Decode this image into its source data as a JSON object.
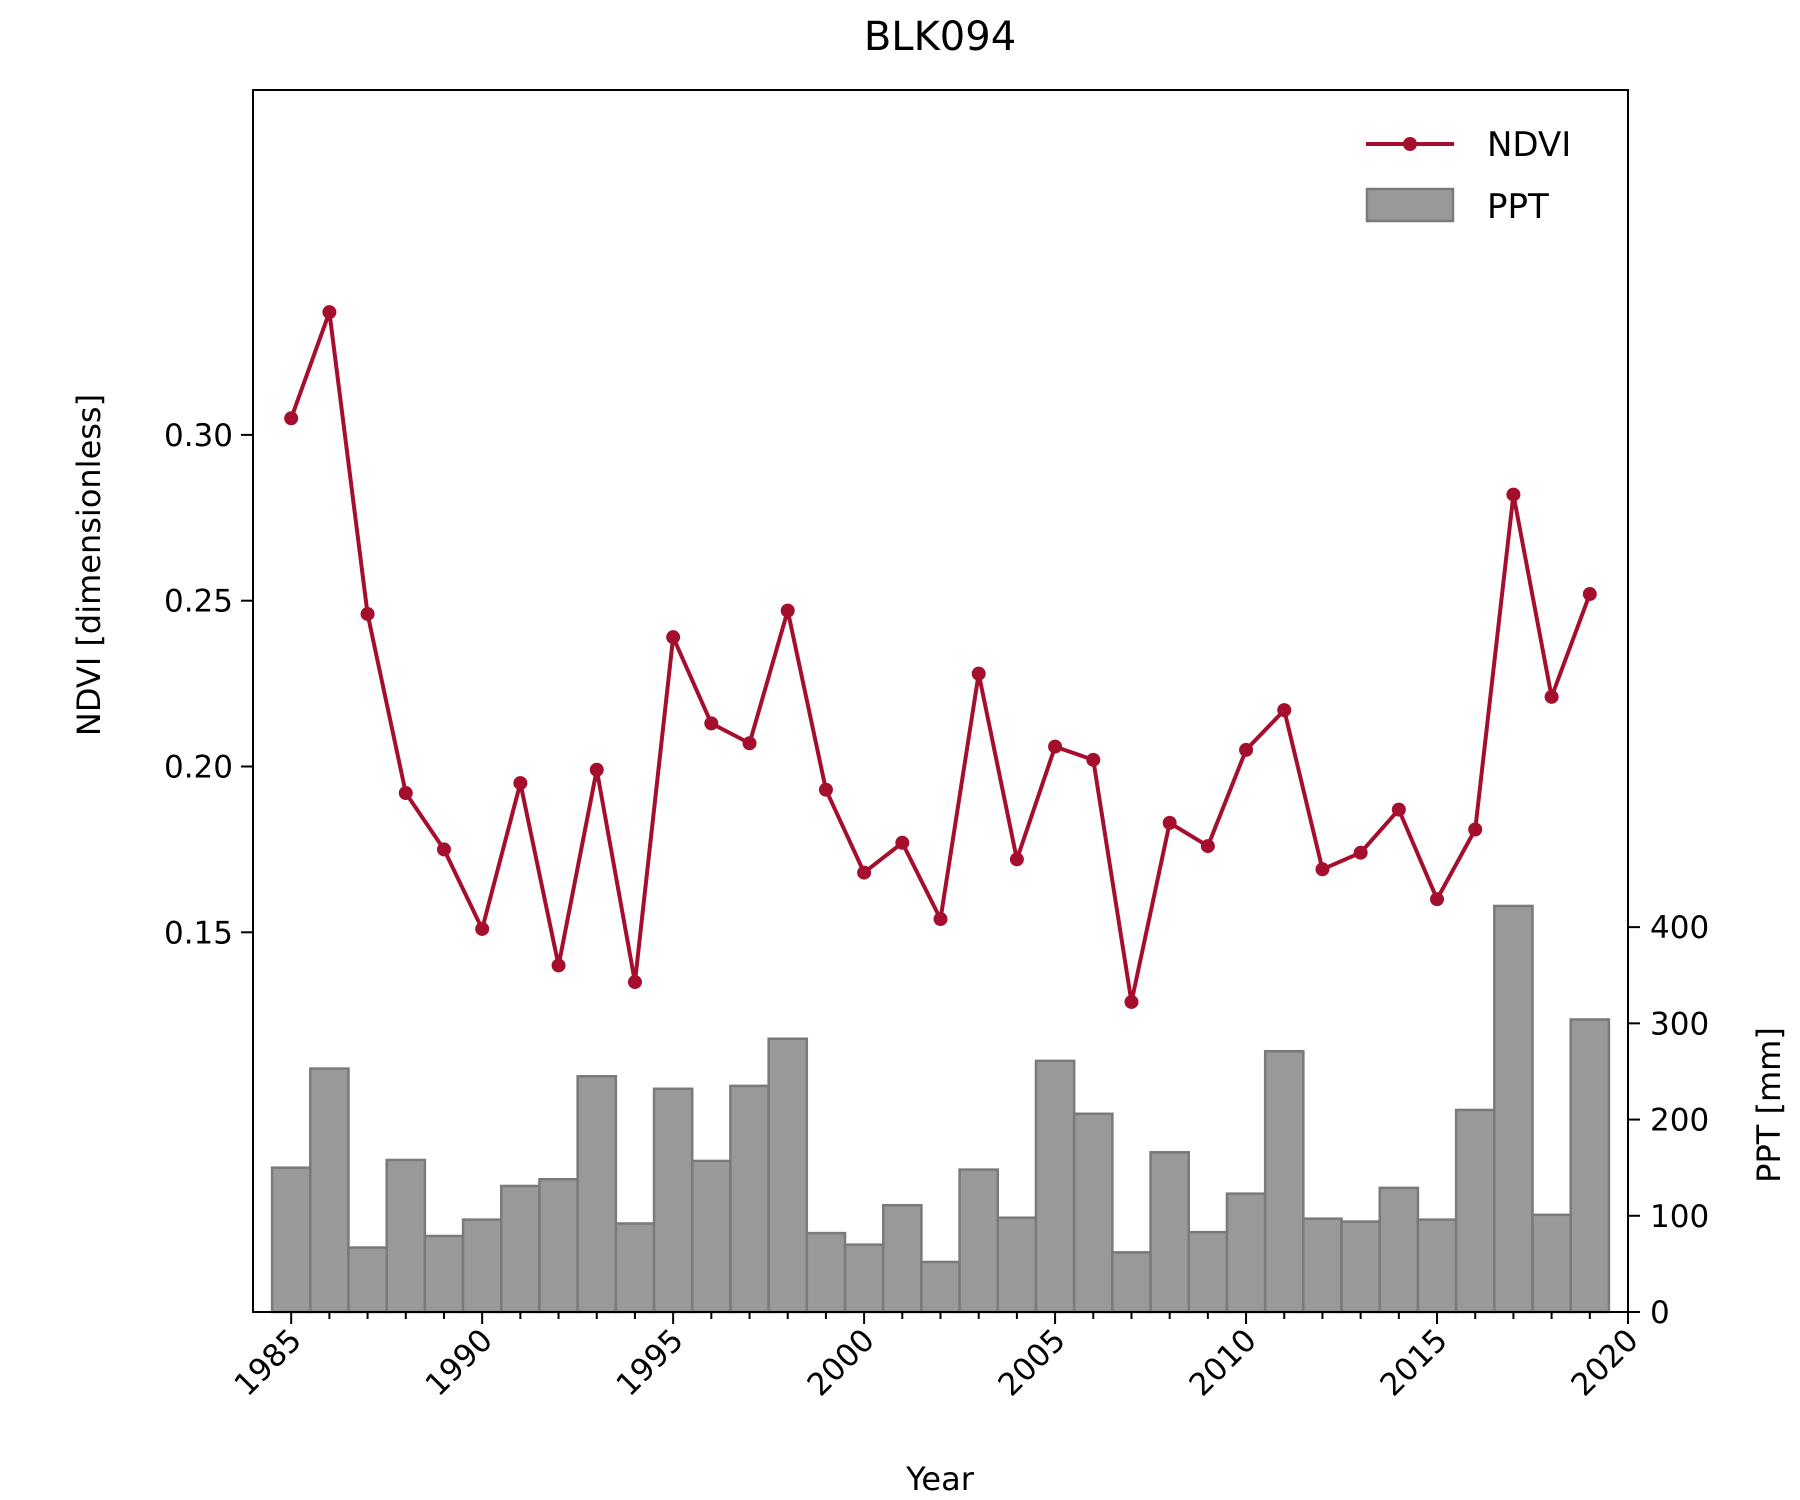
{
  "chart_data": {
    "type": "line",
    "title": "BLK094",
    "xlabel": "Year",
    "ylabel": "NDVI [dimensionless]",
    "y2label": "PPT [mm]",
    "xlim": [
      1984,
      2020
    ],
    "x_ticks": [
      1985,
      1990,
      1995,
      2000,
      2005,
      2010,
      2015,
      2020
    ],
    "y_ticks": [
      "0.15",
      "0.20",
      "0.25",
      "0.30"
    ],
    "y2_ticks": [
      "0",
      "100",
      "200",
      "300",
      "400"
    ],
    "ylim": [
      0.0355,
      0.404
    ],
    "y2lim": [
      0,
      1270
    ],
    "grid": false,
    "legend": {
      "position": "top-right",
      "entries": [
        "NDVI",
        "PPT"
      ]
    },
    "colors": {
      "ndvi": "#a50f2d",
      "ppt_fill": "#999999",
      "ppt_edge": "#7a7a7a"
    },
    "series": [
      {
        "name": "NDVI",
        "type": "line",
        "x": [
          1985,
          1986,
          1987,
          1988,
          1989,
          1990,
          1991,
          1992,
          1993,
          1994,
          1995,
          1996,
          1997,
          1998,
          1999,
          2000,
          2001,
          2002,
          2003,
          2004,
          2005,
          2006,
          2007,
          2008,
          2009,
          2010,
          2011,
          2012,
          2013,
          2014,
          2015,
          2016,
          2017,
          2018,
          2019
        ],
        "values": [
          0.305,
          0.337,
          0.246,
          0.192,
          0.175,
          0.151,
          0.195,
          0.14,
          0.199,
          0.135,
          0.239,
          0.213,
          0.207,
          0.247,
          0.193,
          0.168,
          0.177,
          0.154,
          0.228,
          0.172,
          0.206,
          0.202,
          0.129,
          0.183,
          0.176,
          0.205,
          0.217,
          0.169,
          0.174,
          0.187,
          0.16,
          0.181,
          0.282,
          0.221,
          0.252
        ]
      },
      {
        "name": "PPT",
        "type": "bar",
        "x": [
          1984.5,
          1985.5,
          1986.5,
          1987.5,
          1988.5,
          1989.5,
          1990.5,
          1991.5,
          1992.5,
          1993.5,
          1994.5,
          1995.5,
          1996.5,
          1997.5,
          1998.5,
          1999.5,
          2000.5,
          2001.5,
          2002.5,
          2003.5,
          2004.5,
          2005.5,
          2006.5,
          2007.5,
          2008.5,
          2009.5,
          2010.5,
          2011.5,
          2012.5,
          2013.5,
          2014.5,
          2015.5,
          2016.5,
          2017.5,
          2018.5
        ],
        "values": [
          150,
          253,
          67,
          158,
          79,
          96,
          131,
          138,
          245,
          92,
          232,
          157,
          235,
          284,
          82,
          70,
          111,
          52,
          148,
          98,
          261,
          206,
          62,
          166,
          83,
          123,
          271,
          97,
          94,
          129,
          96,
          210,
          422,
          101,
          304
        ]
      }
    ]
  }
}
